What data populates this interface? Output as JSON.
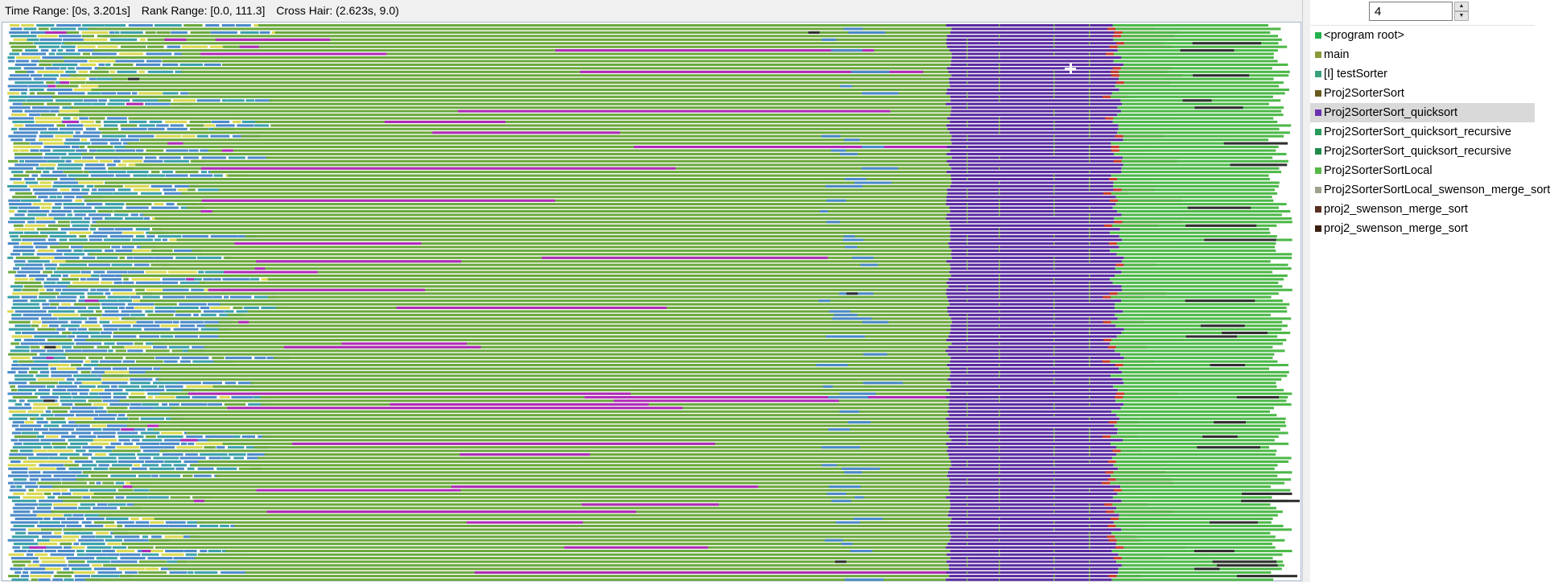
{
  "status": {
    "time_range": "Time Range: [0s, 3.201s]",
    "rank_range": "Rank Range: [0.0, 111.3]",
    "cross_hair": "Cross Hair: (2.623s, 9.0)"
  },
  "depth": {
    "value": "4"
  },
  "legend": {
    "selected_index": 4,
    "items": [
      {
        "label": "<program root>",
        "color": "#22b14c"
      },
      {
        "label": "main",
        "color": "#8a9a3a"
      },
      {
        "label": "[I] testSorter",
        "color": "#3aa07a"
      },
      {
        "label": "Proj2SorterSort",
        "color": "#6b5a1e"
      },
      {
        "label": "Proj2SorterSort_quicksort",
        "color": "#6a2fb0"
      },
      {
        "label": "Proj2SorterSort_quicksort_recursive",
        "color": "#2a9a5a"
      },
      {
        "label": "Proj2SorterSort_quicksort_recursive",
        "color": "#1f8a4a"
      },
      {
        "label": "Proj2SorterSortLocal",
        "color": "#56b848"
      },
      {
        "label": "Proj2SorterSortLocal_swenson_merge_sort",
        "color": "#a0a090"
      },
      {
        "label": "proj2_swenson_merge_sort",
        "color": "#5a3020"
      },
      {
        "label": "proj2_swenson_merge_sort",
        "color": "#3a2010"
      }
    ]
  },
  "trace_colors": {
    "main_green": "#6aa83c",
    "early_blue": "#4a8ac8",
    "early_teal": "#3aa0a8",
    "early_yellow": "#d8d850",
    "magenta": "#b02ab8",
    "quicksort_purple": "#5a2aa0",
    "sortlocal_green": "#4cb848",
    "recursive_red": "#c83a2a",
    "dark": "#303030"
  },
  "crosshair": {
    "time_s": 2.623,
    "rank": 9.0
  }
}
